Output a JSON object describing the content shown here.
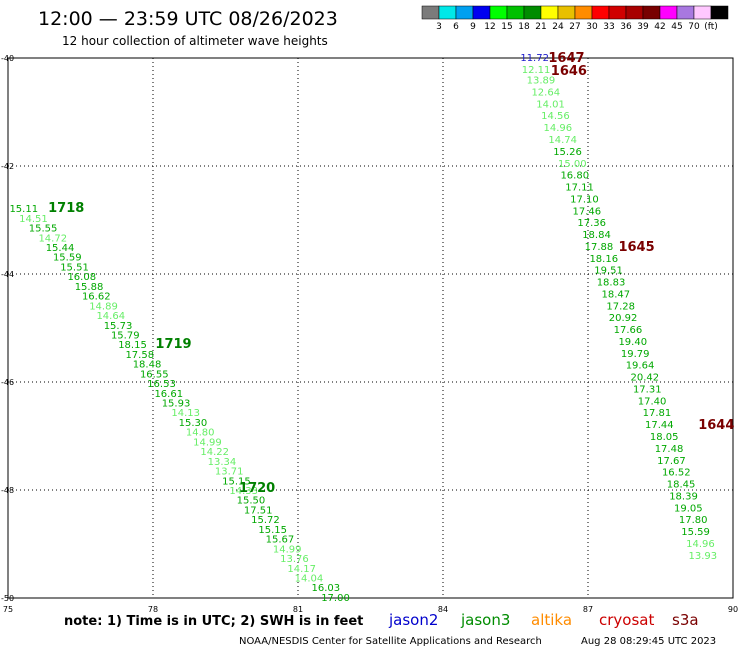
{
  "header": {
    "title": "12:00 — 23:59 UTC 08/26/2023",
    "subtitle": "12 hour collection of altimeter wave heights"
  },
  "scale": {
    "colors": [
      "#7b7b7b",
      "#00e8e8",
      "#00a0f0",
      "#0000f0",
      "#00ff00",
      "#00c000",
      "#008c00",
      "#ffff00",
      "#e8c000",
      "#ff8c00",
      "#ff0000",
      "#d00000",
      "#a80000",
      "#780000",
      "#ff00ff",
      "#a878e0",
      "#ffc8ff",
      "#000000"
    ],
    "labels": [
      "3",
      "6",
      "9",
      "12",
      "15",
      "18",
      "21",
      "24",
      "27",
      "30",
      "33",
      "36",
      "39",
      "42",
      "45",
      "70",
      "(ft)"
    ]
  },
  "note": "note:  1) Time is in UTC;  2) SWH is in feet",
  "satellites": [
    {
      "name": "jason2",
      "color": "#0000cc"
    },
    {
      "name": "jason3",
      "color": "#008c00"
    },
    {
      "name": "altika",
      "color": "#ff8c00"
    },
    {
      "name": "cryosat",
      "color": "#cc0000"
    },
    {
      "name": "s3a",
      "color": "#7a0000"
    }
  ],
  "footer": {
    "credit": "NOAA/NESDIS Center for Satellite Applications and Research",
    "timestamp": "Aug 28 08:29:45 UTC 2023"
  },
  "chart_data": {
    "type": "scatter",
    "x_label_desc": "longitude",
    "y_label_desc": "latitude",
    "xlim": [
      75,
      90
    ],
    "ylim": [
      -50,
      -40
    ],
    "xticks": [
      75,
      78,
      81,
      84,
      87,
      90
    ],
    "yticks": [
      -40,
      -42,
      -44,
      -46,
      -48,
      -50
    ],
    "xtick_labels": [
      "75",
      "78",
      "81",
      "84",
      "87",
      "90"
    ],
    "ytick_labels": [
      "-40",
      "-42",
      "-44",
      "-46",
      "-48",
      "-50"
    ],
    "grid": true,
    "colors": {
      "c15": "#66ee66",
      "c18": "#00a800",
      "c21": "#006800",
      "c12": "#1a1acc",
      "time_green": "#008000",
      "time_dark": "#7a0000"
    },
    "tracks": [
      {
        "satellite": "jason3",
        "points": [
          {
            "v": "15.11",
            "lon": 75.03,
            "lat": -42.78,
            "c": "c18"
          },
          {
            "v": "14.51",
            "lon": 75.23,
            "lat": -42.96,
            "c": "c15"
          },
          {
            "v": "15.55",
            "lon": 75.43,
            "lat": -43.14,
            "c": "c18"
          },
          {
            "v": "14.72",
            "lon": 75.63,
            "lat": -43.32,
            "c": "c15"
          },
          {
            "v": "15.44",
            "lon": 75.78,
            "lat": -43.5,
            "c": "c18"
          },
          {
            "v": "15.59",
            "lon": 75.93,
            "lat": -43.68,
            "c": "c18"
          },
          {
            "v": "15.51",
            "lon": 76.08,
            "lat": -43.86,
            "c": "c18"
          },
          {
            "v": "16.08",
            "lon": 76.23,
            "lat": -44.04,
            "c": "c18"
          },
          {
            "v": "15.88",
            "lon": 76.38,
            "lat": -44.22,
            "c": "c18"
          },
          {
            "v": "16.62",
            "lon": 76.53,
            "lat": -44.4,
            "c": "c18"
          },
          {
            "v": "14.89",
            "lon": 76.68,
            "lat": -44.58,
            "c": "c15"
          },
          {
            "v": "14.64",
            "lon": 76.83,
            "lat": -44.76,
            "c": "c15"
          },
          {
            "v": "15.73",
            "lon": 76.98,
            "lat": -44.94,
            "c": "c18"
          },
          {
            "v": "15.79",
            "lon": 77.13,
            "lat": -45.12,
            "c": "c18"
          },
          {
            "v": "18.15",
            "lon": 77.28,
            "lat": -45.3,
            "c": "c18"
          },
          {
            "v": "17.58",
            "lon": 77.43,
            "lat": -45.48,
            "c": "c18"
          },
          {
            "v": "18.48",
            "lon": 77.58,
            "lat": -45.66,
            "c": "c18"
          },
          {
            "v": "16.55",
            "lon": 77.73,
            "lat": -45.84,
            "c": "c18"
          },
          {
            "v": "16.53",
            "lon": 77.88,
            "lat": -46.02,
            "c": "c18"
          },
          {
            "v": "16.61",
            "lon": 78.03,
            "lat": -46.2,
            "c": "c18"
          },
          {
            "v": "15.93",
            "lon": 78.18,
            "lat": -46.38,
            "c": "c18"
          },
          {
            "v": "14.13",
            "lon": 78.38,
            "lat": -46.56,
            "c": "c15"
          },
          {
            "v": "15.30",
            "lon": 78.53,
            "lat": -46.74,
            "c": "c18"
          },
          {
            "v": "14.80",
            "lon": 78.68,
            "lat": -46.92,
            "c": "c15"
          },
          {
            "v": "14.99",
            "lon": 78.83,
            "lat": -47.1,
            "c": "c15"
          },
          {
            "v": "14.22",
            "lon": 78.98,
            "lat": -47.28,
            "c": "c15"
          },
          {
            "v": "13.34",
            "lon": 79.13,
            "lat": -47.46,
            "c": "c15"
          },
          {
            "v": "13.71",
            "lon": 79.28,
            "lat": -47.64,
            "c": "c15"
          },
          {
            "v": "15.15",
            "lon": 79.43,
            "lat": -47.82,
            "c": "c18"
          },
          {
            "v": "14.33",
            "lon": 79.58,
            "lat": -48.0,
            "c": "c15"
          },
          {
            "v": "15.50",
            "lon": 79.73,
            "lat": -48.18,
            "c": "c18"
          },
          {
            "v": "17.51",
            "lon": 79.88,
            "lat": -48.36,
            "c": "c18"
          },
          {
            "v": "15.72",
            "lon": 80.03,
            "lat": -48.54,
            "c": "c18"
          },
          {
            "v": "15.15",
            "lon": 80.18,
            "lat": -48.72,
            "c": "c18"
          },
          {
            "v": "15.67",
            "lon": 80.33,
            "lat": -48.9,
            "c": "c18"
          },
          {
            "v": "14.99",
            "lon": 80.48,
            "lat": -49.08,
            "c": "c15"
          },
          {
            "v": "13.76",
            "lon": 80.63,
            "lat": -49.26,
            "c": "c15"
          },
          {
            "v": "14.17",
            "lon": 80.78,
            "lat": -49.44,
            "c": "c15"
          },
          {
            "v": "14.04",
            "lon": 80.93,
            "lat": -49.62,
            "c": "c15"
          },
          {
            "v": "16.03",
            "lon": 81.28,
            "lat": -49.8,
            "c": "c18"
          },
          {
            "v": "17.00",
            "lon": 81.48,
            "lat": -49.98,
            "c": "c18"
          }
        ],
        "times": [
          {
            "t": "1718",
            "lon": 75.83,
            "lat": -42.76,
            "c": "time_green"
          },
          {
            "t": "1719",
            "lon": 78.05,
            "lat": -45.28,
            "c": "time_green"
          },
          {
            "t": "1720",
            "lon": 79.78,
            "lat": -47.94,
            "c": "time_green"
          }
        ]
      },
      {
        "satellite": "s3a",
        "points": [
          {
            "v": "11.72",
            "lon": 85.6,
            "lat": -39.98,
            "c": "c12"
          },
          {
            "v": "12.11",
            "lon": 85.63,
            "lat": -40.2,
            "c": "c15"
          },
          {
            "v": "13.89",
            "lon": 85.73,
            "lat": -40.4,
            "c": "c15"
          },
          {
            "v": "12.64",
            "lon": 85.83,
            "lat": -40.62,
            "c": "c15"
          },
          {
            "v": "14.01",
            "lon": 85.93,
            "lat": -40.84,
            "c": "c15"
          },
          {
            "v": "14.56",
            "lon": 86.03,
            "lat": -41.06,
            "c": "c15"
          },
          {
            "v": "14.96",
            "lon": 86.08,
            "lat": -41.28,
            "c": "c15"
          },
          {
            "v": "14.74",
            "lon": 86.18,
            "lat": -41.5,
            "c": "c15"
          },
          {
            "v": "15.26",
            "lon": 86.28,
            "lat": -41.72,
            "c": "c18"
          },
          {
            "v": "15.00",
            "lon": 86.38,
            "lat": -41.94,
            "c": "c15"
          },
          {
            "v": "16.80",
            "lon": 86.43,
            "lat": -42.16,
            "c": "c18"
          },
          {
            "v": "17.11",
            "lon": 86.53,
            "lat": -42.38,
            "c": "c18"
          },
          {
            "v": "17.10",
            "lon": 86.63,
            "lat": -42.6,
            "c": "c18"
          },
          {
            "v": "17.46",
            "lon": 86.68,
            "lat": -42.82,
            "c": "c18"
          },
          {
            "v": "17.36",
            "lon": 86.78,
            "lat": -43.04,
            "c": "c18"
          },
          {
            "v": "18.84",
            "lon": 86.88,
            "lat": -43.26,
            "c": "c18"
          },
          {
            "v": "17.88",
            "lon": 86.93,
            "lat": -43.48,
            "c": "c18"
          },
          {
            "v": "18.16",
            "lon": 87.03,
            "lat": -43.7,
            "c": "c18"
          },
          {
            "v": "19.51",
            "lon": 87.13,
            "lat": -43.92,
            "c": "c18"
          },
          {
            "v": "18.83",
            "lon": 87.18,
            "lat": -44.14,
            "c": "c18"
          },
          {
            "v": "18.47",
            "lon": 87.28,
            "lat": -44.36,
            "c": "c18"
          },
          {
            "v": "17.28",
            "lon": 87.38,
            "lat": -44.58,
            "c": "c18"
          },
          {
            "v": "20.92",
            "lon": 87.43,
            "lat": -44.8,
            "c": "c18"
          },
          {
            "v": "17.66",
            "lon": 87.53,
            "lat": -45.02,
            "c": "c18"
          },
          {
            "v": "19.40",
            "lon": 87.63,
            "lat": -45.24,
            "c": "c18"
          },
          {
            "v": "19.79",
            "lon": 87.68,
            "lat": -45.46,
            "c": "c18"
          },
          {
            "v": "19.64",
            "lon": 87.78,
            "lat": -45.68,
            "c": "c18"
          },
          {
            "v": "20.42",
            "lon": 87.88,
            "lat": -45.9,
            "c": "c18"
          },
          {
            "v": "17.31",
            "lon": 87.93,
            "lat": -46.12,
            "c": "c18"
          },
          {
            "v": "17.40",
            "lon": 88.03,
            "lat": -46.34,
            "c": "c18"
          },
          {
            "v": "17.81",
            "lon": 88.13,
            "lat": -46.56,
            "c": "c18"
          },
          {
            "v": "17.44",
            "lon": 88.18,
            "lat": -46.78,
            "c": "c18"
          },
          {
            "v": "18.05",
            "lon": 88.28,
            "lat": -47.0,
            "c": "c18"
          },
          {
            "v": "17.48",
            "lon": 88.38,
            "lat": -47.22,
            "c": "c18"
          },
          {
            "v": "17.67",
            "lon": 88.43,
            "lat": -47.44,
            "c": "c18"
          },
          {
            "v": "16.52",
            "lon": 88.53,
            "lat": -47.66,
            "c": "c18"
          },
          {
            "v": "18.45",
            "lon": 88.63,
            "lat": -47.88,
            "c": "c18"
          },
          {
            "v": "18.39",
            "lon": 88.68,
            "lat": -48.1,
            "c": "c18"
          },
          {
            "v": "19.05",
            "lon": 88.78,
            "lat": -48.32,
            "c": "c18"
          },
          {
            "v": "17.80",
            "lon": 88.88,
            "lat": -48.54,
            "c": "c18"
          },
          {
            "v": "15.59",
            "lon": 88.93,
            "lat": -48.76,
            "c": "c18"
          },
          {
            "v": "14.96",
            "lon": 89.03,
            "lat": -48.98,
            "c": "c15"
          },
          {
            "v": "13.93",
            "lon": 89.08,
            "lat": -49.2,
            "c": "c15"
          }
        ],
        "times": [
          {
            "t": "1647",
            "lon": 86.18,
            "lat": -39.98,
            "c": "time_dark"
          },
          {
            "t": "1646",
            "lon": 86.23,
            "lat": -40.22,
            "c": "time_dark"
          },
          {
            "t": "1645",
            "lon": 87.63,
            "lat": -43.48,
            "c": "time_dark"
          },
          {
            "t": "1644",
            "lon": 89.28,
            "lat": -46.78,
            "c": "time_dark"
          }
        ]
      }
    ]
  }
}
